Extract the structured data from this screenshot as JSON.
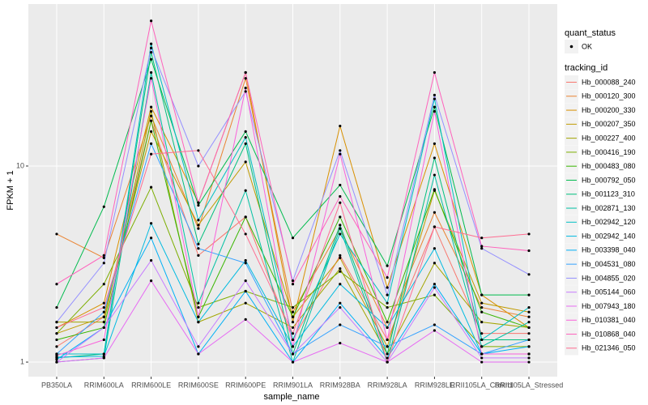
{
  "chart_data": {
    "type": "line",
    "x_label": "sample_name",
    "y_label": "FPKM + 1",
    "y_log": true,
    "grid": true,
    "point_color": "#000000",
    "shape_legend": {
      "title": "quant_status",
      "labels": [
        "OK"
      ]
    },
    "legend_title": "tracking_id",
    "legend_position": "right",
    "categories": [
      "PB350LA",
      "RRIM600LA",
      "RRIM600LE",
      "RRIM600SE",
      "RRIM600PE",
      "RRIM901LA",
      "RRIM928BA",
      "RRIM928LA",
      "RRIM928LE",
      "RRII105LA_Control",
      "RRII105LA_Stressed"
    ],
    "ylim": [
      0.843,
      67
    ],
    "yticks": [
      1,
      10
    ],
    "series": [
      {
        "name": "Hb_000088_240",
        "color": "#F8766D",
        "values": [
          1.2,
          1.7,
          17,
          3.5,
          5.5,
          1.3,
          3.5,
          1.3,
          4.9,
          1.4,
          1.4
        ]
      },
      {
        "name": "Hb_000120_300",
        "color": "#EA8331",
        "values": [
          4.5,
          3.4,
          18,
          4.8,
          28,
          1.8,
          4.8,
          1.5,
          5.8,
          1.9,
          1.7
        ]
      },
      {
        "name": "Hb_000200_330",
        "color": "#D89000",
        "values": [
          1.5,
          2.0,
          20,
          6.5,
          30,
          1.6,
          16,
          2.4,
          13,
          2.2,
          1.5
        ]
      },
      {
        "name": "Hb_000207_350",
        "color": "#C09B00",
        "values": [
          1.4,
          1.7,
          15,
          5.0,
          10.5,
          1.7,
          3.4,
          1.2,
          7.5,
          2.0,
          1.8
        ]
      },
      {
        "name": "Hb_000227_400",
        "color": "#A3A500",
        "values": [
          1.6,
          1.6,
          19,
          1.6,
          2.0,
          1.5,
          3.0,
          1.1,
          3.2,
          1.6,
          1.5
        ]
      },
      {
        "name": "Hb_000416_190",
        "color": "#7CAE00",
        "values": [
          1.4,
          2.5,
          7.8,
          1.9,
          2.3,
          1.9,
          2.9,
          1.9,
          2.2,
          1.2,
          1.2
        ]
      },
      {
        "name": "Hb_000483_080",
        "color": "#39B600",
        "values": [
          1.3,
          1.5,
          17,
          1.7,
          5.5,
          1.7,
          5.5,
          1.6,
          7.6,
          1.8,
          1.5
        ]
      },
      {
        "name": "Hb_000792_050",
        "color": "#00BB4E",
        "values": [
          1.9,
          6.2,
          35,
          6.3,
          15,
          4.3,
          8.0,
          3.1,
          20,
          2.2,
          2.2
        ]
      },
      {
        "name": "Hb_001123_310",
        "color": "#00BF7D",
        "values": [
          1.05,
          1.1,
          38,
          4.0,
          13,
          1.1,
          5.0,
          1.1,
          11,
          1.3,
          1.3
        ]
      },
      {
        "name": "Hb_002871_130",
        "color": "#00C1A3",
        "values": [
          1.0,
          1.05,
          30,
          2.0,
          7.5,
          1.0,
          4.8,
          1.0,
          9,
          1.2,
          1.6
        ]
      },
      {
        "name": "Hb_002942_120",
        "color": "#00BFC4",
        "values": [
          1.1,
          1.1,
          42,
          5.3,
          14,
          1.3,
          4.5,
          2.0,
          22,
          1.3,
          1.9
        ]
      },
      {
        "name": "Hb_002942_140",
        "color": "#00BAE0",
        "values": [
          1.06,
          1.07,
          5.1,
          1.6,
          3.3,
          1.2,
          2.5,
          1.5,
          3.8,
          1.1,
          1.1
        ]
      },
      {
        "name": "Hb_003398_040",
        "color": "#00B0F6",
        "values": [
          1.03,
          1.5,
          4.3,
          1.1,
          2.3,
          1.0,
          2.0,
          1.05,
          2.5,
          1.1,
          1.2
        ]
      },
      {
        "name": "Hb_004531_080",
        "color": "#35A2FF",
        "values": [
          1.1,
          1.8,
          13,
          3.8,
          3.2,
          1.1,
          1.55,
          1.2,
          1.55,
          1.1,
          1.3
        ]
      },
      {
        "name": "Hb_004855_020",
        "color": "#9590FF",
        "values": [
          1.6,
          3.2,
          40,
          10,
          24,
          2.6,
          12,
          2.2,
          23,
          3.8,
          2.8
        ]
      },
      {
        "name": "Hb_005144_060",
        "color": "#C77CFF",
        "values": [
          1.0,
          1.5,
          3.3,
          1.2,
          2.6,
          1.1,
          1.9,
          1.0,
          2.4,
          1.05,
          1.05
        ]
      },
      {
        "name": "Hb_007943_180",
        "color": "#E76BF3",
        "values": [
          1.0,
          1.05,
          2.6,
          1.1,
          1.65,
          1.0,
          1.25,
          1.0,
          1.45,
          1.0,
          1.0
        ]
      },
      {
        "name": "Hb_010381_040",
        "color": "#FA62DB",
        "values": [
          1.08,
          1.3,
          28,
          1.7,
          25,
          1.2,
          11.5,
          1.3,
          19,
          1.1,
          1.1
        ]
      },
      {
        "name": "Hb_010868_040",
        "color": "#FF62BC",
        "values": [
          2.5,
          3.5,
          55,
          6.5,
          30,
          2.5,
          7.0,
          2.7,
          30,
          3.9,
          3.7
        ]
      },
      {
        "name": "Hb_021346_050",
        "color": "#FF6C91",
        "values": [
          1.5,
          1.9,
          11.5,
          12,
          4.5,
          1.4,
          6.5,
          1.0,
          4.9,
          4.3,
          4.5
        ]
      }
    ]
  }
}
